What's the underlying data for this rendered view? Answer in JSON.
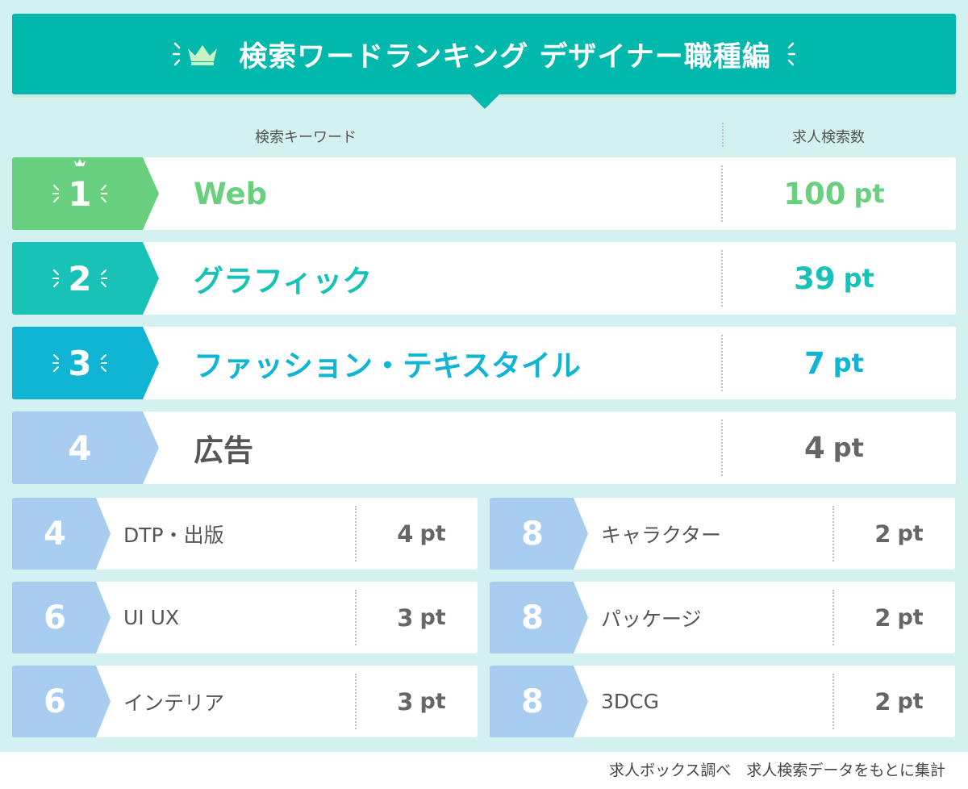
{
  "header": {
    "title": "検索ワードランキング デザイナー職種編",
    "color": "#00b8ac"
  },
  "columns": {
    "keyword": "検索キーワード",
    "count": "求人検索数"
  },
  "chart_data": {
    "type": "table",
    "title": "検索ワードランキング デザイナー職種編",
    "columns": [
      "検索キーワード",
      "求人検索数"
    ],
    "unit": "pt",
    "rows": [
      {
        "rank": "1",
        "keyword": "Web",
        "value": 100,
        "color": "#69d07f"
      },
      {
        "rank": "2",
        "keyword": "グラフィック",
        "value": 39,
        "color": "#19c2b6"
      },
      {
        "rank": "3",
        "keyword": "ファッション・テキスタイル",
        "value": 7,
        "color": "#10b5d4"
      },
      {
        "rank": "4",
        "keyword": "広告",
        "value": 4,
        "color": "#a9cdf0"
      },
      {
        "rank": "4",
        "keyword": "DTP・出版",
        "value": 4,
        "color": "#a9cdf0"
      },
      {
        "rank": "6",
        "keyword": "UI UX",
        "value": 3,
        "color": "#a9cdf0"
      },
      {
        "rank": "6",
        "keyword": "インテリア",
        "value": 3,
        "color": "#a9cdf0"
      },
      {
        "rank": "8",
        "keyword": "キャラクター",
        "value": 2,
        "color": "#a9cdf0"
      },
      {
        "rank": "8",
        "keyword": "パッケージ",
        "value": 2,
        "color": "#a9cdf0"
      },
      {
        "rank": "8",
        "keyword": "3DCG",
        "value": 2,
        "color": "#a9cdf0"
      }
    ]
  },
  "footer": {
    "source": "求人ボックス調べ　求人検索データをもとに集計"
  }
}
